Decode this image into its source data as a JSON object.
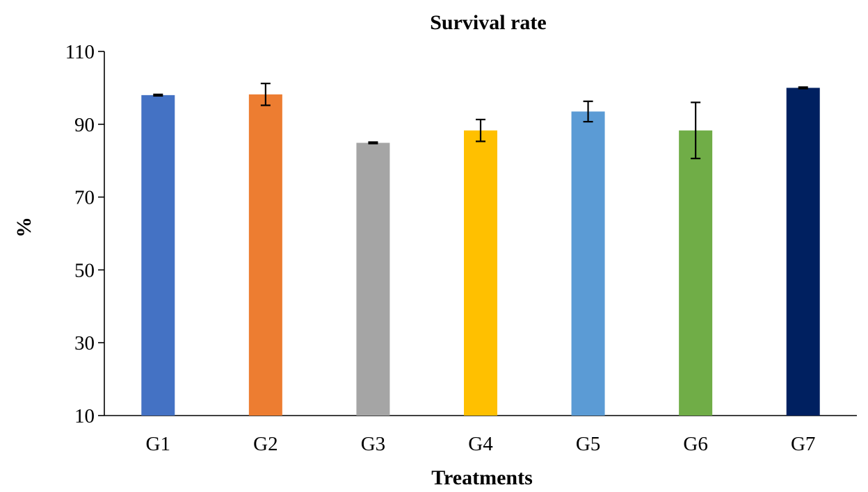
{
  "chart_data": {
    "type": "bar",
    "title": "Survival rate",
    "xlabel": "Treatments",
    "ylabel": "%",
    "categories": [
      "G1",
      "G2",
      "G3",
      "G4",
      "G5",
      "G6",
      "G7"
    ],
    "values": [
      98,
      98.2,
      84.9,
      88.3,
      93.5,
      88.3,
      100
    ],
    "errors": [
      0.2,
      3,
      0.2,
      3,
      2.8,
      7.7,
      0.2
    ],
    "colors": [
      "#4472c4",
      "#ed7d31",
      "#a5a5a5",
      "#ffc000",
      "#5b9bd5",
      "#70ad47",
      "#002060"
    ],
    "ylim": [
      10,
      110
    ],
    "yticks": [
      10,
      30,
      50,
      70,
      90,
      110
    ],
    "grid": false,
    "legend": "none"
  }
}
